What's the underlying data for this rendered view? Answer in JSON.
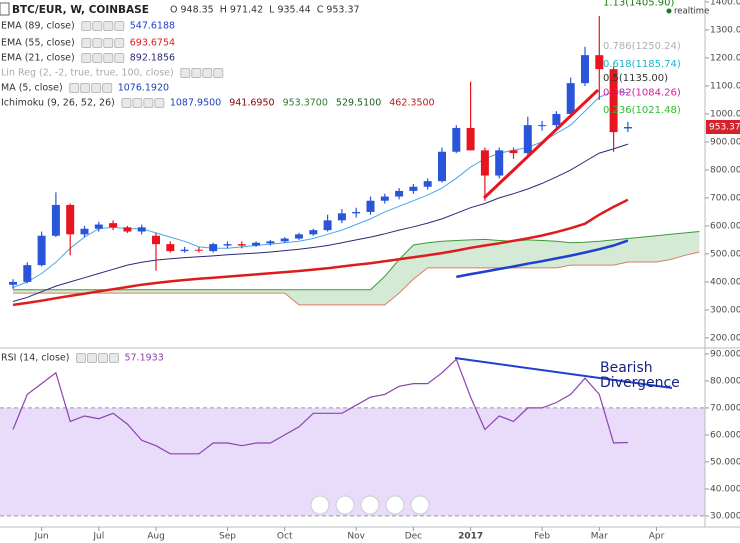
{
  "header": {
    "symbol": "BTC/EUR, W, COINBASE",
    "ohlc": [
      {
        "label": "O",
        "value": "948.35"
      },
      {
        "label": "H",
        "value": "971.42"
      },
      {
        "label": "L",
        "value": "935.44"
      },
      {
        "label": "C",
        "value": "953.37"
      }
    ]
  },
  "legend": [
    {
      "label": "EMA (89, close)",
      "value": "547.6188",
      "color": "#1e3fd0"
    },
    {
      "label": "EMA (55, close)",
      "value": "693.6754",
      "color": "#e01b1b"
    },
    {
      "label": "EMA (21, close)",
      "value": "892.1856",
      "color": "#2a2a7a"
    },
    {
      "label": "Lin Reg (2, -2, true, true, 100, close)",
      "color": "#aaaaaa"
    },
    {
      "label": "MA (5, close)",
      "value": "1076.1920",
      "color": "#1a3fbf"
    },
    {
      "label": "Ichimoku (9, 26, 52, 26)",
      "values": [
        "1087.9500",
        "941.6950",
        "953.3700",
        "529.5100",
        "462.3500"
      ],
      "colors": [
        "#1a3fbf",
        "#8b0000",
        "#2e7d32",
        "#1b5e20",
        "#b71c1c"
      ]
    }
  ],
  "chart_data": [
    {
      "type": "candlestick",
      "up_color": "#2b55d8",
      "down_color": "#e8141e",
      "open": [
        390,
        400,
        460,
        565,
        675,
        570,
        590,
        610,
        595,
        580,
        565,
        535,
        510,
        515,
        510,
        530,
        535,
        530,
        538,
        545,
        555,
        570,
        585,
        620,
        645,
        650,
        690,
        705,
        725,
        740,
        760,
        865,
        950,
        870,
        780,
        870,
        860,
        960,
        960,
        1000,
        1110,
        1210,
        1160,
        948.35,
        null,
        null,
        null,
        null,
        null
      ],
      "high": [
        410,
        470,
        580,
        720,
        680,
        600,
        615,
        620,
        600,
        605,
        575,
        545,
        525,
        525,
        540,
        545,
        545,
        545,
        550,
        560,
        575,
        590,
        640,
        660,
        665,
        705,
        715,
        735,
        750,
        770,
        880,
        960,
        1115,
        880,
        880,
        880,
        990,
        975,
        1010,
        1130,
        1240,
        1350,
        1170,
        971.42,
        null,
        null,
        null,
        null,
        null
      ],
      "low": [
        375,
        395,
        455,
        560,
        495,
        560,
        580,
        585,
        575,
        570,
        440,
        505,
        505,
        505,
        505,
        520,
        520,
        525,
        530,
        540,
        550,
        565,
        580,
        610,
        630,
        640,
        680,
        695,
        715,
        730,
        755,
        860,
        870,
        690,
        770,
        840,
        850,
        940,
        940,
        990,
        1100,
        1050,
        865,
        935.44,
        null,
        null,
        null,
        null,
        null
      ],
      "close": [
        400,
        460,
        565,
        675,
        570,
        590,
        605,
        595,
        580,
        595,
        535,
        510,
        515,
        512,
        535,
        535,
        530,
        540,
        545,
        555,
        570,
        585,
        620,
        645,
        650,
        690,
        705,
        725,
        740,
        760,
        865,
        950,
        870,
        780,
        870,
        860,
        960,
        960,
        1000,
        1110,
        1210,
        1160,
        935,
        953.37,
        null,
        null,
        null,
        null,
        null
      ],
      "series": [
        {
          "color": "#1e3fd0",
          "width": 2.5,
          "values": [
            null,
            null,
            null,
            null,
            null,
            null,
            null,
            null,
            null,
            null,
            null,
            null,
            null,
            null,
            null,
            null,
            null,
            null,
            null,
            null,
            null,
            null,
            null,
            null,
            null,
            null,
            null,
            null,
            null,
            null,
            null,
            418,
            428,
            437,
            446,
            455,
            465,
            474,
            484,
            494,
            505,
            517,
            530,
            547.6188,
            null,
            null,
            null,
            null,
            null
          ]
        },
        {
          "color": "#e01b1b",
          "width": 2.5,
          "values": [
            318,
            325,
            333,
            342,
            350,
            358,
            366,
            374,
            382,
            390,
            396,
            402,
            407,
            411,
            415,
            419,
            423,
            427,
            431,
            435,
            439,
            444,
            449,
            455,
            461,
            467,
            474,
            481,
            488,
            495,
            503,
            512,
            522,
            530,
            538,
            547,
            556,
            566,
            578,
            592,
            608,
            640,
            668,
            693.6754,
            null,
            null,
            null,
            null,
            null
          ]
        },
        {
          "color": "#2a2a7a",
          "width": 1,
          "values": [
            330,
            345,
            365,
            385,
            400,
            415,
            430,
            445,
            460,
            470,
            478,
            483,
            487,
            490,
            493,
            497,
            500,
            503,
            507,
            512,
            517,
            523,
            530,
            540,
            550,
            560,
            572,
            585,
            597,
            610,
            625,
            645,
            665,
            680,
            700,
            715,
            732,
            752,
            775,
            800,
            830,
            860,
            875,
            892.1856,
            null,
            null,
            null,
            null,
            null
          ]
        },
        {
          "color": "#4aa8e8",
          "width": 1,
          "values": [
            380,
            400,
            430,
            470,
            520,
            560,
            590,
            595,
            590,
            590,
            575,
            560,
            545,
            525,
            520,
            520,
            525,
            530,
            535,
            540,
            545,
            555,
            570,
            585,
            605,
            625,
            650,
            670,
            690,
            710,
            735,
            770,
            810,
            840,
            860,
            870,
            880,
            900,
            930,
            960,
            1010,
            1060,
            1080,
            1076.192,
            null,
            null,
            null,
            null,
            null
          ]
        }
      ],
      "cloud": {
        "fill": "rgba(60,160,60,0.22)",
        "span_a": {
          "color": "#3a9a3a",
          "values": [
            372,
            372,
            372,
            372,
            372,
            372,
            372,
            372,
            372,
            372,
            372,
            372,
            372,
            372,
            372,
            372,
            372,
            372,
            372,
            372,
            372,
            372,
            372,
            372,
            372,
            372,
            420,
            480,
            532,
            540,
            545,
            548,
            550,
            552,
            548,
            545,
            550,
            548,
            545,
            540,
            542,
            545,
            550,
            555,
            560,
            565,
            570,
            575,
            580
          ]
        },
        "span_b": {
          "color": "#e07a6a",
          "values": [
            360,
            360,
            360,
            360,
            360,
            360,
            360,
            360,
            360,
            360,
            360,
            360,
            360,
            360,
            360,
            360,
            360,
            360,
            360,
            360,
            318,
            318,
            318,
            318,
            318,
            318,
            318,
            360,
            410,
            450,
            450,
            450,
            450,
            450,
            450,
            450,
            450,
            450,
            450,
            460,
            460,
            460,
            460,
            471,
            471,
            471,
            480,
            495,
            507
          ]
        }
      },
      "fib_levels": [
        {
          "value": 1405.9,
          "label": "1.13(1405.90)",
          "color": "#1b7a1b"
        },
        {
          "value": 1250.24,
          "label": "0.786(1250.24)",
          "color": "#b0b0b0"
        },
        {
          "value": 1185.74,
          "label": "0.618(1185.74)",
          "color": "#18b5c8"
        },
        {
          "value": 1135,
          "label": "0.5(1135.00)",
          "color": "#333333"
        },
        {
          "value": 1084.26,
          "label": "0.382(1084.26)",
          "color": "#d81b9a"
        },
        {
          "value": 1021.48,
          "label": "0.236(1021.48)",
          "color": "#2ebd2e"
        }
      ],
      "last_price_label": "953.37",
      "realtime_label": "realtime",
      "ylim": [
        164,
        1407
      ],
      "yticks": [
        {
          "value": 200,
          "label": "200.00"
        },
        {
          "value": 300,
          "label": "300.00"
        },
        {
          "value": 400,
          "label": "400.00"
        },
        {
          "value": 500,
          "label": "500.00"
        },
        {
          "value": 600,
          "label": "600.00"
        },
        {
          "value": 700,
          "label": "700.00"
        },
        {
          "value": 800,
          "label": "800.00"
        },
        {
          "value": 900,
          "label": "900.00"
        },
        {
          "value": 1000,
          "label": "1000.00"
        },
        {
          "value": 1100,
          "label": "1100.00"
        },
        {
          "value": 1200,
          "label": "1200.00"
        },
        {
          "value": 1300,
          "label": "1300.00"
        },
        {
          "value": 1400,
          "label": "1400.00"
        }
      ]
    },
    {
      "type": "line",
      "title": "RSI (14, close)",
      "value_label": "57.1933",
      "categories": [
        null,
        null,
        "Jun",
        null,
        null,
        null,
        "Jul",
        null,
        null,
        null,
        "Aug",
        null,
        null,
        null,
        null,
        "Sep",
        null,
        null,
        null,
        "Oct",
        null,
        null,
        null,
        null,
        "Nov",
        null,
        null,
        null,
        "Dec",
        null,
        null,
        null,
        "2017",
        null,
        null,
        null,
        null,
        "Feb",
        null,
        null,
        null,
        "Mar",
        null,
        null,
        null,
        "Apr",
        null,
        null,
        null
      ],
      "series": [
        {
          "color": "#8e44ad",
          "values": [
            62,
            75,
            79,
            83,
            65,
            67,
            66,
            68,
            64,
            58,
            56,
            53,
            53,
            53,
            57,
            57,
            56,
            57,
            57,
            60,
            63,
            68,
            68,
            68,
            71,
            74,
            75,
            78,
            79,
            79,
            83,
            88,
            74,
            62,
            67,
            65,
            70,
            70,
            72,
            75,
            81,
            75,
            57,
            57.1933,
            null,
            null,
            null,
            null,
            null
          ]
        }
      ],
      "band": [
        30,
        70
      ],
      "band_color": "rgba(180,140,240,0.3)",
      "annotation": [
        "Bearish",
        "Divergence"
      ],
      "ylim": [
        25.9,
        92.2
      ],
      "yticks": [
        {
          "value": 30,
          "label": "30.0000"
        },
        {
          "value": 40,
          "label": "40.0000"
        },
        {
          "value": 50,
          "label": "50.0000"
        },
        {
          "value": 60,
          "label": "60.0000"
        },
        {
          "value": 70,
          "label": "70.0000"
        },
        {
          "value": 80,
          "label": "80.0000"
        },
        {
          "value": 90,
          "label": "90.0000"
        }
      ]
    }
  ]
}
